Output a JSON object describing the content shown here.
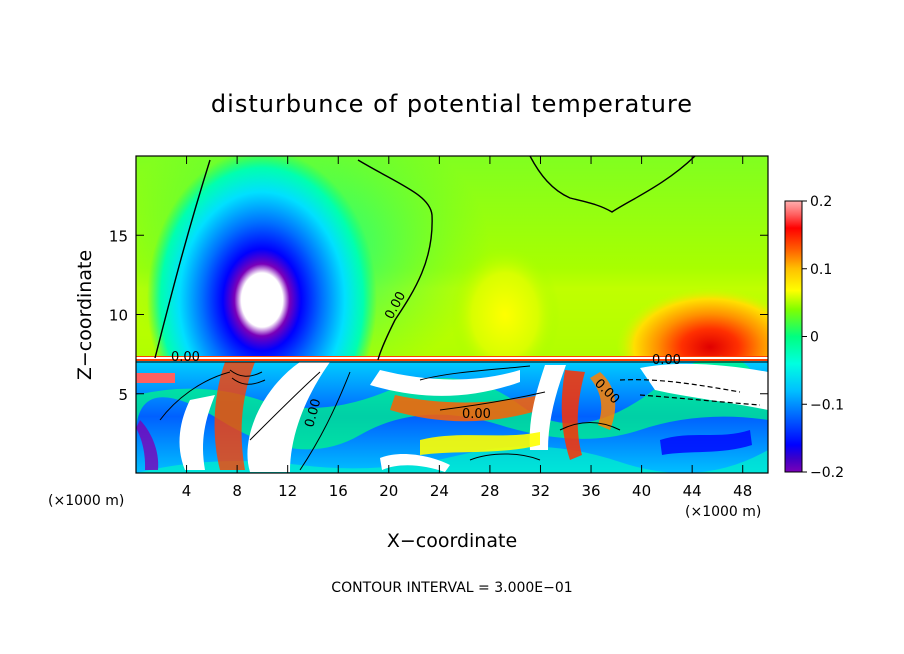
{
  "chart_data": {
    "type": "heatmap",
    "title": "disturbunce of potential temperature",
    "xlabel": "X−coordinate",
    "ylabel": "Z−coordinate",
    "xunit_left": "(×1000 m)",
    "xunit_right": "(×1000 m)",
    "xlim": [
      0,
      50
    ],
    "ylim": [
      0,
      20
    ],
    "xticks": [
      4,
      8,
      12,
      16,
      20,
      24,
      28,
      32,
      36,
      40,
      44,
      48
    ],
    "xtick_labels": [
      "4",
      "8",
      "12",
      "16",
      "20",
      "24",
      "28",
      "32",
      "36",
      "40",
      "44",
      "48"
    ],
    "yticks": [
      5,
      10,
      15
    ],
    "ytick_labels": [
      "5",
      "10",
      "15"
    ],
    "colorbar": {
      "min": -0.2,
      "max": 0.2,
      "ticks": [
        0.2,
        0.1,
        0,
        -0.1,
        -0.2
      ],
      "tick_labels": [
        "0.2",
        "0.1",
        "0",
        "−0.1",
        "−0.2"
      ],
      "colors": [
        "#7a00b8",
        "#3c00c8",
        "#0000ff",
        "#0040ff",
        "#0080ff",
        "#00c0ff",
        "#00ffff",
        "#00ffc8",
        "#00ff80",
        "#40ff40",
        "#80ff00",
        "#c0ff00",
        "#ffff00",
        "#ffc000",
        "#ff8000",
        "#ff4000",
        "#ff0000",
        "#e80000",
        "#ff6060",
        "#ffb0b0"
      ]
    },
    "contour_labels": [
      {
        "text": "0.00",
        "x": 3.0,
        "z": 7.3
      },
      {
        "text": "0.00",
        "x": 21.5,
        "z": 10.3
      },
      {
        "text": "0.00",
        "x": 14.7,
        "z": 4.0
      },
      {
        "text": "0.00",
        "x": 27.0,
        "z": 3.9
      },
      {
        "text": "0.00",
        "x": 42.6,
        "z": 7.2
      },
      {
        "text": "0.00",
        "x": 37.5,
        "z": 4.9
      }
    ],
    "features": [
      {
        "name": "cold-anomaly-upper",
        "x": 10,
        "z": 11,
        "value": -0.2
      },
      {
        "name": "warm-anomaly-right",
        "x": 46,
        "z": 9.5,
        "value": 0.13
      },
      {
        "name": "warm-anomaly-mid",
        "x": 28,
        "z": 10,
        "value": 0.08
      }
    ],
    "contour_interval": "CONTOUR INTERVAL = 3.000E−01"
  }
}
